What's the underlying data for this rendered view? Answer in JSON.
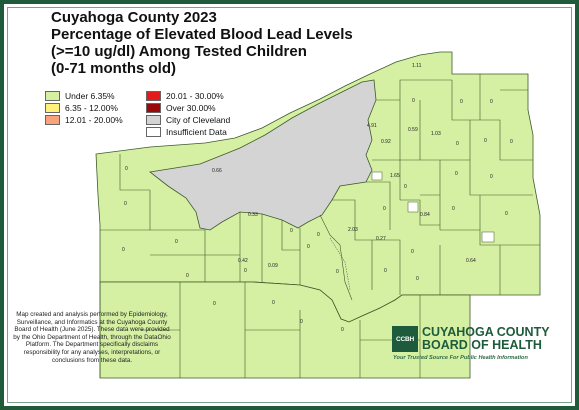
{
  "title": {
    "line1": "Cuyahoga County 2023",
    "line2": "Percentage of Elevated Blood Lead Levels",
    "line3": "(>=10 ug/dl) Among Tested Children",
    "line4": "(0-71 months old)"
  },
  "legend": [
    {
      "label": "Under 6.35%",
      "color": "#d6f0a3"
    },
    {
      "label": "6.35 - 12.00%",
      "color": "#fff27a"
    },
    {
      "label": "12.01 - 20.00%",
      "color": "#f7a37b"
    },
    {
      "label": "20.01 - 30.00%",
      "color": "#e41a1c"
    },
    {
      "label": "Over 30.00%",
      "color": "#9b0a0a"
    },
    {
      "label": "City of Cleveland",
      "color": "#d4d4d4"
    },
    {
      "label": "Insufficient Data",
      "color": "#ffffff"
    }
  ],
  "map_labels": {
    "l1": "1.11",
    "l2": "4.91",
    "l3": "0.59",
    "l4": "0.92",
    "l5": "1.03",
    "l6": "1.65",
    "l7": "0.66",
    "l8": "0.33",
    "l9": "0.84",
    "l10": "2.03",
    "l11": "0.27",
    "l12": "0.42",
    "l13": "0.09",
    "l14": "0.64",
    "z": "0"
  },
  "footnote": "Map created and analysis performed by Epidemiology, Surveillance, and Informatics at the Cuyahoga County Board of Health (June 2025). These data were provided by the Ohio Department of Health, through the DataOhio Platform. The Department specifically disclaims responsibility for any analyses, interpretations, or conclusions from these data.",
  "logo": {
    "badge": "CCBH",
    "line1": "CUYAHOGA COUNTY",
    "line2": "BOARD OF HEALTH",
    "tagline": "Your Trusted Source For Public Health Information"
  },
  "colors": {
    "frame": "#1f5a3a",
    "under": "#d6f0a3",
    "cleveland": "#d4d4d4",
    "boundary": "#3d5a2a"
  }
}
